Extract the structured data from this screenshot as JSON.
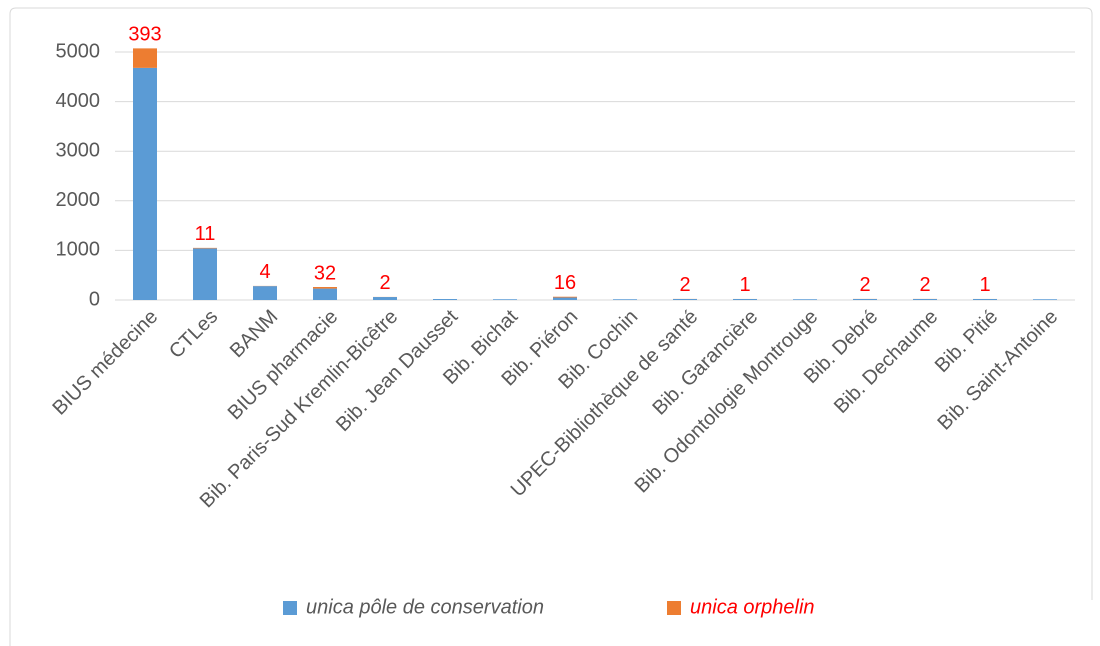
{
  "chart_data": {
    "type": "stacked_bar",
    "categories": [
      "BIUS médecine",
      "CTLes",
      "BANM",
      "BIUS pharmacie",
      "Bib. Paris-Sud Kremlin-Bicêtre",
      "Bib. Jean Dausset",
      "Bib. Bichat",
      "Bib. Piéron",
      "Bib. Cochin",
      "UPEC-Bibliothèque de santé",
      "Bib. Garancière",
      "Bib. Odontologie Montrouge",
      "Bib. Debré",
      "Bib. Dechaume",
      "Bib. Pitié",
      "Bib. Saint-Antoine"
    ],
    "series": [
      {
        "name": "unica pôle de conservation",
        "color": "#5b9bd5",
        "values": [
          4680,
          1040,
          280,
          230,
          60,
          20,
          15,
          50,
          15,
          20,
          20,
          15,
          20,
          20,
          20,
          15
        ]
      },
      {
        "name": "unica orphelin",
        "color": "#ed7d31",
        "label_color": "#ff0000",
        "values": [
          393,
          11,
          4,
          32,
          2,
          null,
          null,
          16,
          null,
          2,
          1,
          null,
          2,
          2,
          1,
          null
        ]
      }
    ],
    "ylim": [
      0,
      5400
    ],
    "yticks": [
      0,
      1000,
      2000,
      3000,
      4000,
      5000
    ],
    "grid": true,
    "legend": "bottom"
  }
}
